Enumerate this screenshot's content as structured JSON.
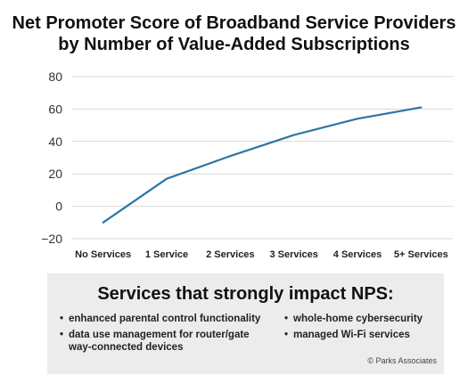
{
  "chart_data": {
    "type": "line",
    "title_lines": [
      "Net Promoter Score of Broadband Service Providers",
      "by Number of Value-Added Subscriptions"
    ],
    "categories": [
      "No Services",
      "1 Service",
      "2 Services",
      "3 Services",
      "4 Services",
      "5+ Services"
    ],
    "series": [
      {
        "values": [
          -10,
          17,
          31,
          44,
          54,
          61
        ]
      }
    ],
    "y_ticks": [
      "80",
      "60",
      "40",
      "20",
      "0",
      "-20"
    ],
    "ylim": [
      -20,
      80
    ],
    "grid": true,
    "line_color": "#2e74a6",
    "grid_color": "#d9d9d9"
  },
  "panel": {
    "title": "Services that strongly impact NPS:",
    "bullets": [
      "enhanced parental control functionality",
      "data use management for router/gate way-connected devices",
      "whole-home cybersecurity",
      "managed Wi-Fi services"
    ],
    "background": "#ececec"
  },
  "credit": "© Parks Associates"
}
